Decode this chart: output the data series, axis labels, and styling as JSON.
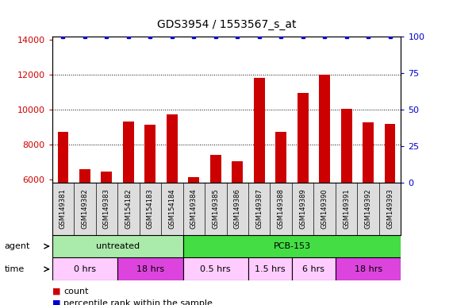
{
  "title": "GDS3954 / 1553567_s_at",
  "samples": [
    "GSM149381",
    "GSM149382",
    "GSM149383",
    "GSM154182",
    "GSM154183",
    "GSM154184",
    "GSM149384",
    "GSM149385",
    "GSM149386",
    "GSM149387",
    "GSM149388",
    "GSM149389",
    "GSM149390",
    "GSM149391",
    "GSM149392",
    "GSM149393"
  ],
  "counts": [
    8750,
    6600,
    6450,
    9350,
    9150,
    9750,
    6150,
    7400,
    7050,
    11850,
    8750,
    10950,
    12000,
    10050,
    9300,
    9200
  ],
  "percentile_ranks": [
    100,
    100,
    100,
    100,
    100,
    100,
    100,
    100,
    100,
    100,
    100,
    100,
    100,
    100,
    100,
    100
  ],
  "ylim_left": [
    5800,
    14200
  ],
  "ylim_right": [
    0,
    100
  ],
  "yticks_left": [
    6000,
    8000,
    10000,
    12000,
    14000
  ],
  "yticks_right": [
    0,
    25,
    50,
    75,
    100
  ],
  "bar_color": "#cc0000",
  "dot_color": "#0000cc",
  "bar_width": 0.5,
  "agent_row": [
    {
      "label": "untreated",
      "start": 0,
      "end": 6,
      "color": "#aaeaaa"
    },
    {
      "label": "PCB-153",
      "start": 6,
      "end": 16,
      "color": "#44dd44"
    }
  ],
  "time_row": [
    {
      "label": "0 hrs",
      "start": 0,
      "end": 3,
      "color": "#ffccff"
    },
    {
      "label": "18 hrs",
      "start": 3,
      "end": 6,
      "color": "#dd44dd"
    },
    {
      "label": "0.5 hrs",
      "start": 6,
      "end": 9,
      "color": "#ffccff"
    },
    {
      "label": "1.5 hrs",
      "start": 9,
      "end": 11,
      "color": "#ffccff"
    },
    {
      "label": "6 hrs",
      "start": 11,
      "end": 13,
      "color": "#ffccff"
    },
    {
      "label": "18 hrs",
      "start": 13,
      "end": 16,
      "color": "#dd44dd"
    }
  ],
  "legend_count_color": "#cc0000",
  "legend_percentile_color": "#0000cc",
  "background_color": "#ffffff",
  "tick_label_color_left": "#cc0000",
  "tick_label_color_right": "#0000cc",
  "xlabel_bg_color": "#dddddd",
  "n_samples": 16,
  "gridlines_at": [
    8000,
    10000,
    12000
  ]
}
